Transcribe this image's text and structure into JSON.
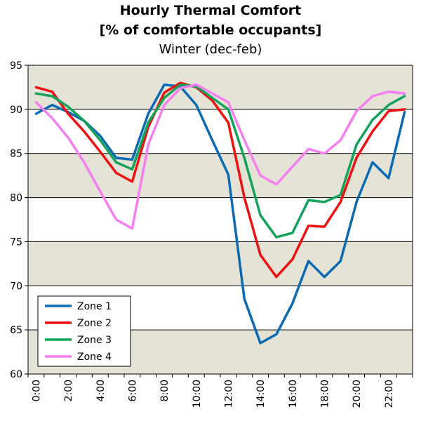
{
  "chart_data": {
    "type": "line",
    "title": "Hourly Thermal Comfort",
    "title_line2": "[% of comfortable occupants]",
    "subtitle": "Winter (dec-feb)",
    "xlabel": "",
    "ylabel": "",
    "ylim": [
      60,
      95
    ],
    "yticks": [
      60,
      65,
      70,
      75,
      80,
      85,
      90,
      95
    ],
    "x": [
      0,
      1,
      2,
      3,
      4,
      5,
      6,
      7,
      8,
      9,
      10,
      11,
      12,
      13,
      14,
      15,
      16,
      17,
      18,
      19,
      20,
      21,
      22,
      23
    ],
    "xtick_labels": [
      "0:00",
      "2:00",
      "4:00",
      "6:00",
      "8:00",
      "10:00",
      "12:00",
      "14:00",
      "16:00",
      "18:00",
      "20:00",
      "22:00"
    ],
    "xtick_hours": [
      0,
      2,
      4,
      6,
      8,
      10,
      12,
      14,
      16,
      18,
      20,
      22
    ],
    "grid": true,
    "band_colors": [
      "#e5e3d6",
      "#ffffff"
    ],
    "legend_position": "bottom-left",
    "series": [
      {
        "name": "Zone 1",
        "color": "#0a6ab4",
        "values": [
          89.5,
          90.5,
          89.7,
          88.7,
          87.0,
          84.5,
          84.3,
          89.5,
          92.8,
          92.6,
          90.5,
          86.5,
          82.6,
          68.5,
          63.5,
          64.5,
          68.0,
          72.8,
          71.0,
          72.8,
          79.5,
          84.0,
          82.2,
          89.7
        ]
      },
      {
        "name": "Zone 2",
        "color": "#ee1111",
        "values": [
          92.5,
          92.0,
          89.5,
          87.5,
          85.2,
          82.8,
          81.8,
          88.0,
          91.9,
          93.0,
          92.5,
          91.0,
          88.5,
          80.0,
          73.5,
          71.0,
          73.0,
          76.8,
          76.7,
          79.5,
          84.5,
          87.5,
          89.8,
          90.0
        ]
      },
      {
        "name": "Zone 3",
        "color": "#12a25a",
        "values": [
          91.8,
          91.5,
          90.3,
          88.7,
          86.5,
          84.0,
          83.2,
          88.5,
          91.3,
          92.8,
          92.6,
          91.3,
          90.0,
          84.5,
          78.0,
          75.5,
          76.0,
          79.7,
          79.5,
          80.3,
          86.0,
          88.8,
          90.5,
          91.5
        ]
      },
      {
        "name": "Zone 4",
        "color": "#f57ff0",
        "values": [
          90.8,
          89.0,
          86.8,
          84.0,
          80.7,
          77.5,
          76.5,
          86.0,
          90.5,
          92.4,
          92.8,
          91.8,
          90.8,
          86.5,
          82.5,
          81.5,
          83.5,
          85.5,
          85.0,
          86.5,
          89.8,
          91.5,
          92.0,
          91.8
        ]
      }
    ]
  }
}
